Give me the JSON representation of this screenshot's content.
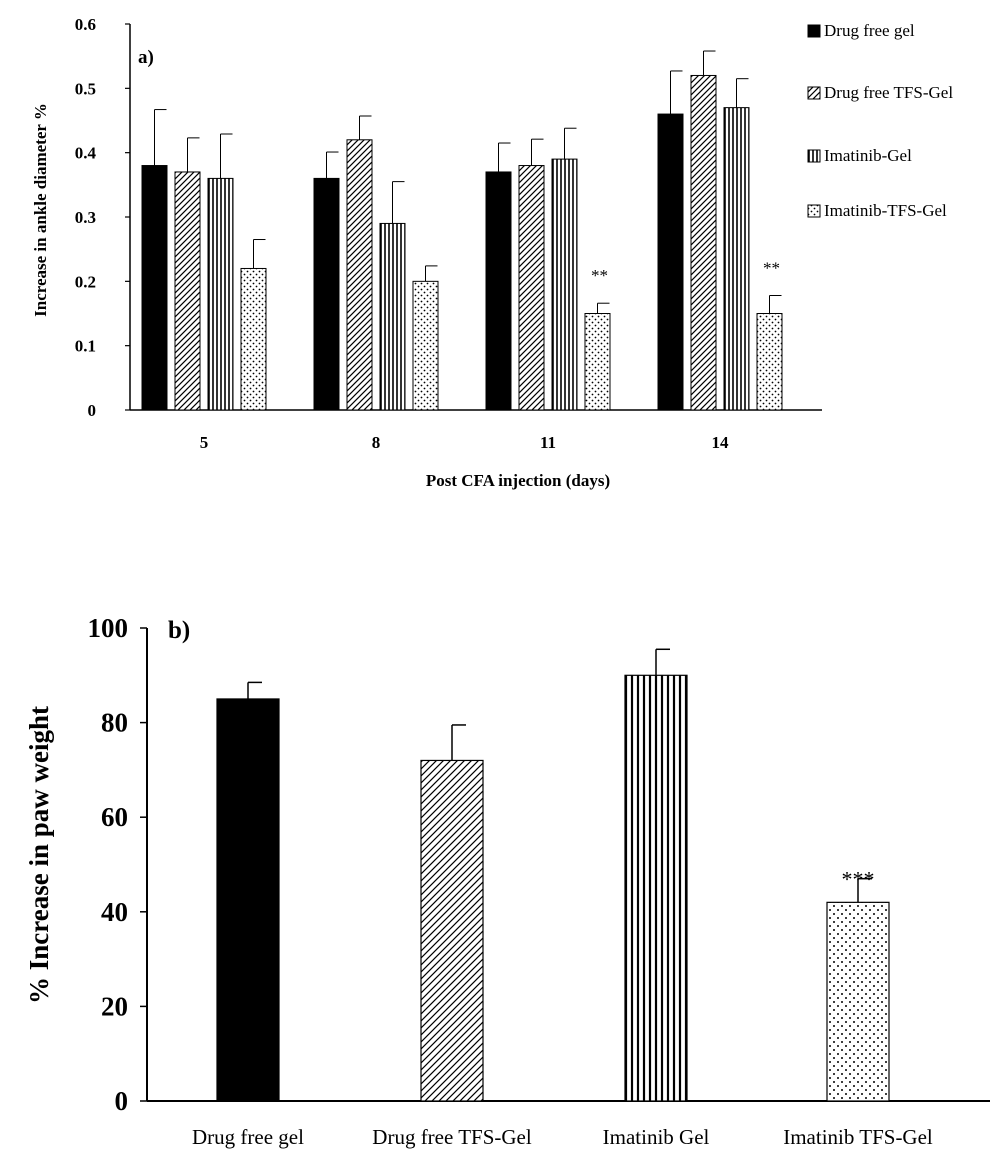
{
  "chart_data": [
    {
      "type": "bar",
      "panel_label": "a)",
      "title": "",
      "xlabel": "Post CFA  injection (days)",
      "ylabel": "Increase in ankle diameter  %",
      "categories": [
        "5",
        "8",
        "11",
        "14"
      ],
      "ylim": [
        0,
        0.6
      ],
      "yticks": [
        "0",
        "0.1",
        "0.2",
        "0.3",
        "0.4",
        "0.5",
        "0.6"
      ],
      "legend_position": "right",
      "series": [
        {
          "name": "Drug free gel",
          "pattern": "solid",
          "values": [
            0.38,
            0.36,
            0.37,
            0.46
          ],
          "errors": [
            0.087,
            0.041,
            0.045,
            0.067
          ]
        },
        {
          "name": "Drug free TFS-Gel",
          "pattern": "diagonal",
          "values": [
            0.37,
            0.42,
            0.38,
            0.52
          ],
          "errors": [
            0.053,
            0.037,
            0.041,
            0.038
          ]
        },
        {
          "name": "Imatinib-Gel",
          "pattern": "vertical",
          "values": [
            0.36,
            0.29,
            0.39,
            0.47
          ],
          "errors": [
            0.069,
            0.065,
            0.048,
            0.045
          ]
        },
        {
          "name": "Imatinib-TFS-Gel",
          "pattern": "dots",
          "values": [
            0.22,
            0.2,
            0.15,
            0.15
          ],
          "errors": [
            0.045,
            0.024,
            0.016,
            0.028
          ]
        }
      ],
      "annotations": [
        {
          "category": "11",
          "series": "Imatinib-TFS-Gel",
          "text": "**"
        },
        {
          "category": "14",
          "series": "Imatinib-TFS-Gel",
          "text": "**"
        }
      ],
      "grid": false
    },
    {
      "type": "bar",
      "panel_label": "b)",
      "title": "",
      "xlabel": "",
      "ylabel": "% Increase in paw weight",
      "categories": [
        "Drug free gel",
        "Drug free TFS-Gel",
        "Imatinib Gel",
        "Imatinib TFS-Gel"
      ],
      "ylim": [
        0,
        100
      ],
      "yticks": [
        "0",
        "20",
        "40",
        "60",
        "80",
        "100"
      ],
      "values": [
        85,
        72,
        90,
        42
      ],
      "errors": [
        3.5,
        7.5,
        5.5,
        5
      ],
      "patterns": [
        "solid",
        "diagonal",
        "vertical",
        "dots"
      ],
      "annotations": [
        {
          "category": "Imatinib TFS-Gel",
          "text": "***"
        }
      ],
      "grid": false
    }
  ]
}
